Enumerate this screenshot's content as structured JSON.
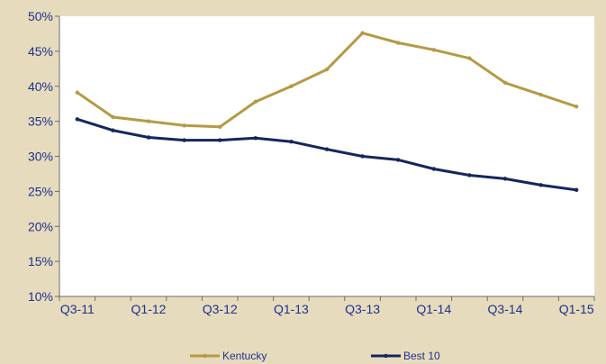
{
  "chart_data": {
    "type": "line",
    "title": "",
    "xlabel": "",
    "ylabel": "",
    "ylim": [
      10,
      50
    ],
    "y_ticks": [
      "10%",
      "15%",
      "20%",
      "25%",
      "30%",
      "35%",
      "40%",
      "45%",
      "50%"
    ],
    "categories": [
      "Q3-11",
      "Q4-11",
      "Q1-12",
      "Q2-12",
      "Q3-12",
      "Q4-12",
      "Q1-13",
      "Q2-13",
      "Q3-13",
      "Q4-13",
      "Q1-14",
      "Q2-14",
      "Q3-14",
      "Q4-14",
      "Q1-15"
    ],
    "x_tick_labels": [
      "Q3-11",
      "",
      "Q1-12",
      "",
      "Q3-12",
      "",
      "Q1-13",
      "",
      "Q3-13",
      "",
      "Q1-14",
      "",
      "Q3-14",
      "",
      "Q1-15"
    ],
    "grid": false,
    "legend_position": "bottom",
    "series": [
      {
        "name": "Kentucky",
        "color": "#b59a45",
        "values": [
          39.1,
          35.6,
          35.0,
          34.4,
          34.2,
          37.8,
          40.0,
          42.4,
          47.6,
          46.2,
          45.2,
          44.0,
          40.5,
          38.8,
          37.1
        ]
      },
      {
        "name": "Best 10",
        "color": "#14265c",
        "values": [
          35.3,
          33.7,
          32.7,
          32.3,
          32.3,
          32.6,
          32.1,
          31.0,
          30.0,
          29.5,
          28.2,
          27.3,
          26.8,
          25.9,
          25.2
        ]
      }
    ]
  }
}
